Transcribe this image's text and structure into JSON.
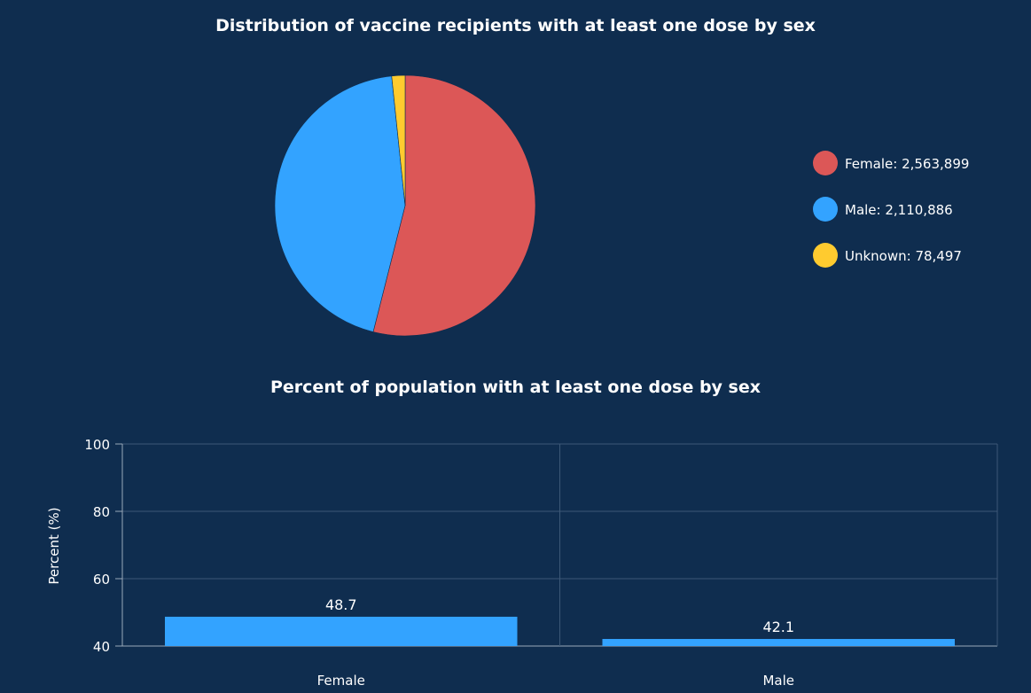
{
  "chart_data": [
    {
      "type": "pie",
      "title": "Distribution of vaccine recipients with at least one dose by sex",
      "slices": [
        {
          "name": "Female",
          "value": 2563899,
          "label": "Female:",
          "value_label": "2,563,899",
          "color": "#dc5757"
        },
        {
          "name": "Male",
          "value": 2110886,
          "label": "Male:",
          "value_label": "2,110,886",
          "color": "#33a3ff"
        },
        {
          "name": "Unknown",
          "value": 78497,
          "label": "Unknown:",
          "value_label": "78,497",
          "color": "#ffcb2f"
        }
      ],
      "legend_placement": "right"
    },
    {
      "type": "bar",
      "title": "Percent of population with at least one dose by sex",
      "categories": [
        "Female",
        "Male"
      ],
      "values": [
        48.7,
        42.1
      ],
      "value_labels": [
        "48.7",
        "42.1"
      ],
      "ylabel": "Percent (%)",
      "xlabel": "",
      "ylim": [
        40,
        100
      ],
      "yticks": [
        40,
        60,
        80,
        100
      ],
      "ytick_labels": [
        "40",
        "60",
        "80",
        "100"
      ],
      "grid": true,
      "bar_color": "#33a3ff"
    }
  ]
}
